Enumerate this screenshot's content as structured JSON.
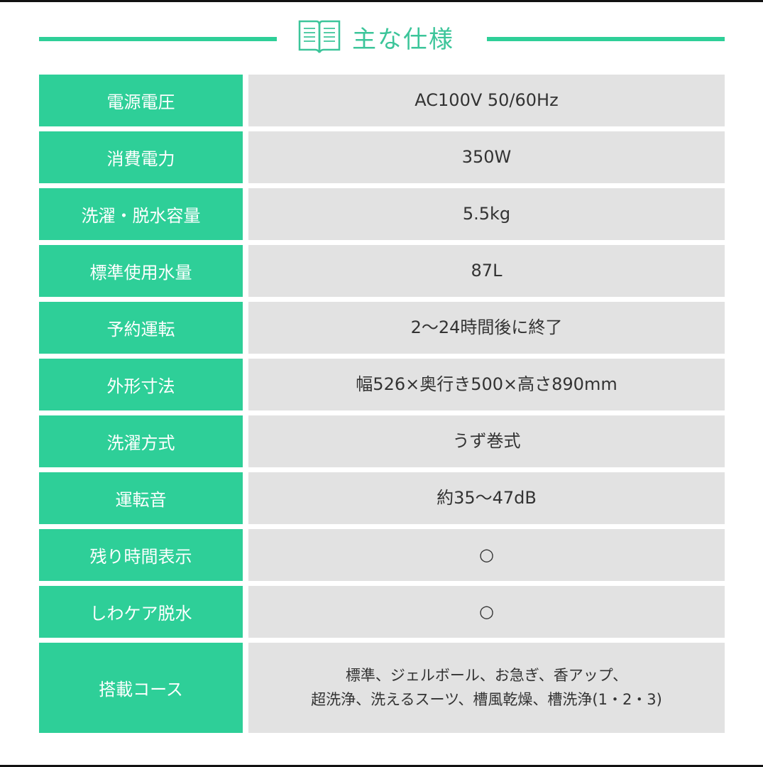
{
  "header": {
    "title": "主な仕様",
    "icon": "open-book-icon",
    "accent": "#2ecf98"
  },
  "specs": [
    {
      "label": "電源電圧",
      "value": [
        "AC100V 50/60Hz"
      ]
    },
    {
      "label": "消費電力",
      "value": [
        "350W"
      ]
    },
    {
      "label": "洗濯・脱水容量",
      "value": [
        "5.5kg"
      ]
    },
    {
      "label": "標準使用水量",
      "value": [
        "87L"
      ]
    },
    {
      "label": "予約運転",
      "value": [
        "2～24時間後に終了"
      ]
    },
    {
      "label": "外形寸法",
      "value": [
        "幅526×奥行き500×高さ890mm"
      ]
    },
    {
      "label": "洗濯方式",
      "value": [
        "うず巻式"
      ]
    },
    {
      "label": "運転音",
      "value": [
        "約35～47dB"
      ]
    },
    {
      "label": "残り時間表示",
      "value": [
        "○"
      ]
    },
    {
      "label": "しわケア脱水",
      "value": [
        "○"
      ]
    },
    {
      "label": "搭載コース",
      "value": [
        "標準、ジェルボール、お急ぎ、香アップ、",
        "超洗浄、洗えるスーツ、槽風乾燥、槽洗浄(1・2・3)"
      ]
    }
  ]
}
